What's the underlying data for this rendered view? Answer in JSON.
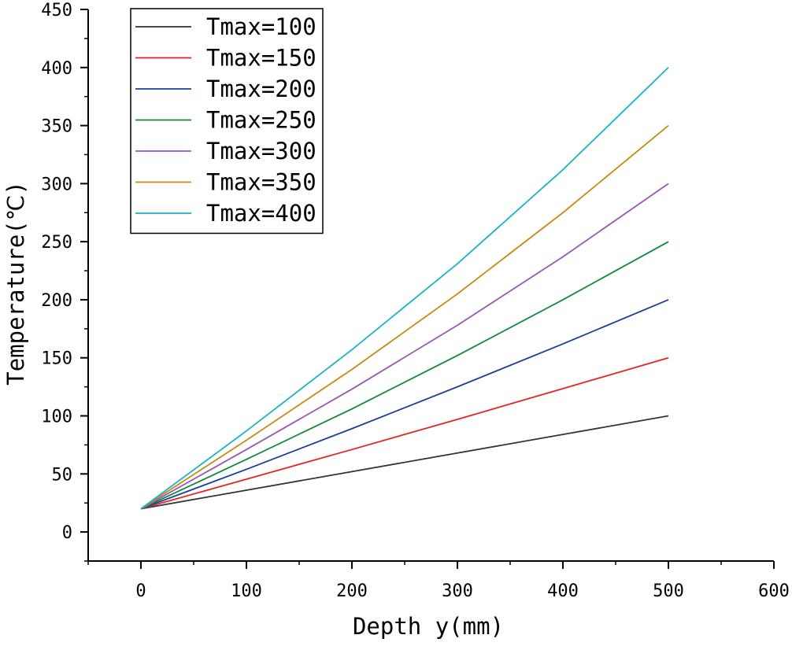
{
  "chart_data": {
    "type": "line",
    "title": "",
    "xlabel": "Depth y(mm)",
    "ylabel": "Temperature(℃)",
    "xlim": [
      -50,
      600
    ],
    "ylim": [
      -25,
      450
    ],
    "xticks": [
      0,
      100,
      200,
      300,
      400,
      500,
      600
    ],
    "yticks": [
      0,
      50,
      100,
      150,
      200,
      250,
      300,
      350,
      400,
      450
    ],
    "x_minor_step": 50,
    "y_minor_step": 25,
    "grid": false,
    "legend_position": "top-left",
    "x": [
      0,
      100,
      200,
      300,
      400,
      500
    ],
    "series": [
      {
        "name": "Tmax=100",
        "color": "#333333",
        "values": [
          20,
          36,
          52,
          68,
          84,
          100
        ]
      },
      {
        "name": "Tmax=150",
        "color": "#e8231f",
        "values": [
          20,
          45.5,
          71,
          97,
          123.5,
          150
        ]
      },
      {
        "name": "Tmax=200",
        "color": "#1a3f9a",
        "values": [
          20,
          54,
          89,
          125,
          162,
          200
        ]
      },
      {
        "name": "Tmax=250",
        "color": "#0f8a3c",
        "values": [
          20,
          62.5,
          106,
          152,
          200,
          250
        ]
      },
      {
        "name": "Tmax=300",
        "color": "#9a55b5",
        "values": [
          20,
          71,
          123,
          178,
          237,
          300
        ]
      },
      {
        "name": "Tmax=350",
        "color": "#c9890e",
        "values": [
          20,
          79,
          140,
          205,
          275,
          350
        ]
      },
      {
        "name": "Tmax=400",
        "color": "#17b3c6",
        "values": [
          20,
          87,
          157,
          231,
          312,
          400
        ]
      }
    ]
  }
}
